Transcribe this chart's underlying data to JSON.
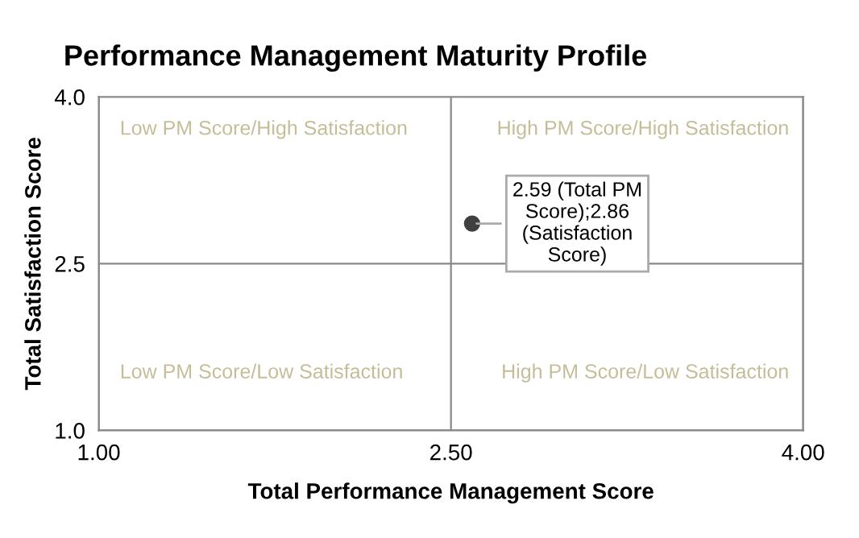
{
  "chart_data": {
    "type": "scatter",
    "title": "Performance Management Maturity Profile",
    "xlabel": "Total Performance Management Score",
    "ylabel": "Total Satisfaction Score",
    "x": [
      2.59
    ],
    "values": [
      2.86
    ],
    "color": "#404040",
    "marker": "circle",
    "xlim": [
      1,
      4
    ],
    "xticks": [
      {
        "value": 1,
        "label": "1.00"
      },
      {
        "value": 2.5,
        "label": "2.50"
      },
      {
        "value": 4,
        "label": "4.00"
      }
    ],
    "ylim": [
      1,
      4
    ],
    "yticks": [
      {
        "value": 1,
        "label": "1.0"
      },
      {
        "value": 2.5,
        "label": "2.5"
      },
      {
        "value": 4,
        "label": "4.0"
      }
    ],
    "grid": true,
    "annotations": [
      "Low PM Score/High Satisfaction",
      "High PM Score/High Satisfaction",
      "Low PM Score/Low Satisfaction",
      "High PM Score/Low Satisfaction",
      {
        "text": "2.59 (Total PM\nScore);2.86\n(Satisfaction\nScore)",
        "x": 2.59,
        "y": 2.86
      }
    ]
  }
}
